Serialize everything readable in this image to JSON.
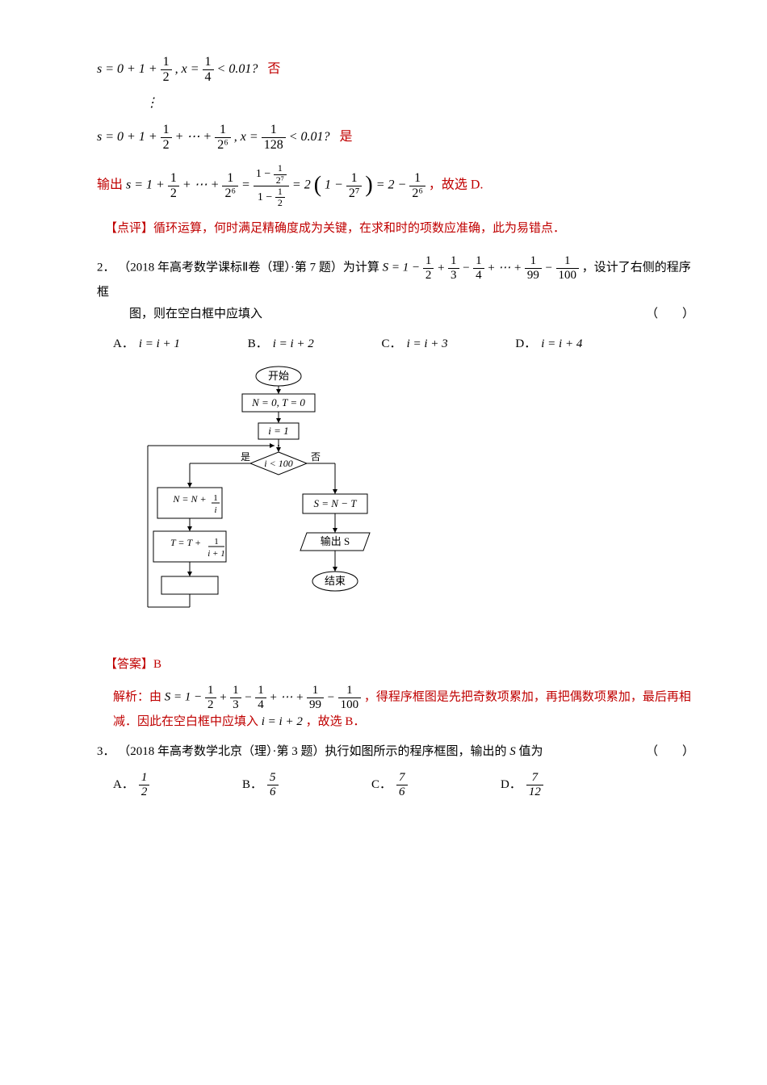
{
  "step1": {
    "prefix_s": "s",
    "equals": "= 0 + 1 +",
    "half_num": "1",
    "half_den": "2",
    "comma_x": ",   x =",
    "xfrac_num": "1",
    "xfrac_den": "4",
    "lt": "< 0.01?",
    "result": "否"
  },
  "vdots": "⋮",
  "step2": {
    "prefix_s": "s",
    "equals": "= 0 + 1 +",
    "half_num": "1",
    "half_den": "2",
    "plus_dots": "+ ⋯ +",
    "last_num": "1",
    "last_den": "2⁶",
    "comma_x": ",   x =",
    "xfrac_num": "1",
    "xfrac_den": "128",
    "lt": "< 0.01?",
    "result": "是"
  },
  "output_line": {
    "label": "输出",
    "s_eq": "s = 1 +",
    "f1n": "1",
    "f1d": "2",
    "plus_dots": "+ ⋯ +",
    "f2n": "1",
    "f2d": "2⁶",
    "eq1": "=",
    "big_num_top": "1 −",
    "big_num_frac_n": "1",
    "big_num_frac_d": "2⁷",
    "big_den_top": "1 −",
    "big_den_frac_n": "1",
    "big_den_frac_d": "2",
    "eq2": "= 2",
    "lp": "(",
    "inner": "1 −",
    "inner_fn": "1",
    "inner_fd": "2⁷",
    "rp": ")",
    "eq3": "= 2 −",
    "last_fn": "1",
    "last_fd": "2⁶",
    "tail": "，故选 D."
  },
  "comment1": "【点评】循环运算，何时满足精确度成为关键，在求和时的项数应准确，此为易错点．",
  "q2": {
    "num": "2．",
    "source": "（2018 年高考数学课标Ⅱ卷（理）·第 7 题）为计算",
    "S_expr": {
      "pre": "S = 1 −",
      "terms": [
        {
          "n": "1",
          "d": "2",
          "op": "+"
        },
        {
          "n": "1",
          "d": "3",
          "op": "−"
        },
        {
          "n": "1",
          "d": "4",
          "op": "+ ⋯ +"
        },
        {
          "n": "1",
          "d": "99",
          "op": "−"
        },
        {
          "n": "1",
          "d": "100",
          "op": ""
        }
      ]
    },
    "post": "，设计了右侧的程序框",
    "line2": "图，则在空白框中应填入",
    "blank": "（　　）",
    "options": {
      "A": "i = i + 1",
      "B": "i = i + 2",
      "C": "i = i + 3",
      "D": "i = i + 4"
    }
  },
  "flowchart": {
    "start": "开始",
    "init": "N = 0, T = 0",
    "i_init": "i = 1",
    "cond": "i < 100",
    "yes": "是",
    "no": "否",
    "box_n": {
      "pre": "N = N +",
      "n": "1",
      "d": "i"
    },
    "box_t": {
      "pre": "T = T +",
      "n": "1",
      "d": "i + 1"
    },
    "box_s": "S = N − T",
    "out_s": "输出 S",
    "end": "结束",
    "blank_box": " "
  },
  "answer2": "【答案】B",
  "expl2": {
    "pre": "解析：由",
    "S_expr": {
      "pre": "S = 1 −",
      "terms": [
        {
          "n": "1",
          "d": "2",
          "op": "+"
        },
        {
          "n": "1",
          "d": "3",
          "op": "−"
        },
        {
          "n": "1",
          "d": "4",
          "op": "+ ⋯ +"
        },
        {
          "n": "1",
          "d": "99",
          "op": "−"
        },
        {
          "n": "1",
          "d": "100",
          "op": ""
        }
      ]
    },
    "post": "，得程序框图是先把奇数项累加，再把偶数项累加，最后再相",
    "line2_pre": "减．因此在空白框中应填入",
    "line2_math": "i = i + 2",
    "line2_post": "，故选 B．"
  },
  "q3": {
    "num": "3．",
    "source": "（2018 年高考数学北京（理）·第 3 题）执行如图所示的程序框图，输出的",
    "svar": "S",
    "post": "值为",
    "blank": "（　　）",
    "options": [
      {
        "label": "A．",
        "n": "1",
        "d": "2"
      },
      {
        "label": "B．",
        "n": "5",
        "d": "6"
      },
      {
        "label": "C．",
        "n": "7",
        "d": "6"
      },
      {
        "label": "D．",
        "n": "7",
        "d": "12"
      }
    ]
  },
  "colors": {
    "red": "#c00000",
    "black": "#000000",
    "bg": "#ffffff"
  }
}
